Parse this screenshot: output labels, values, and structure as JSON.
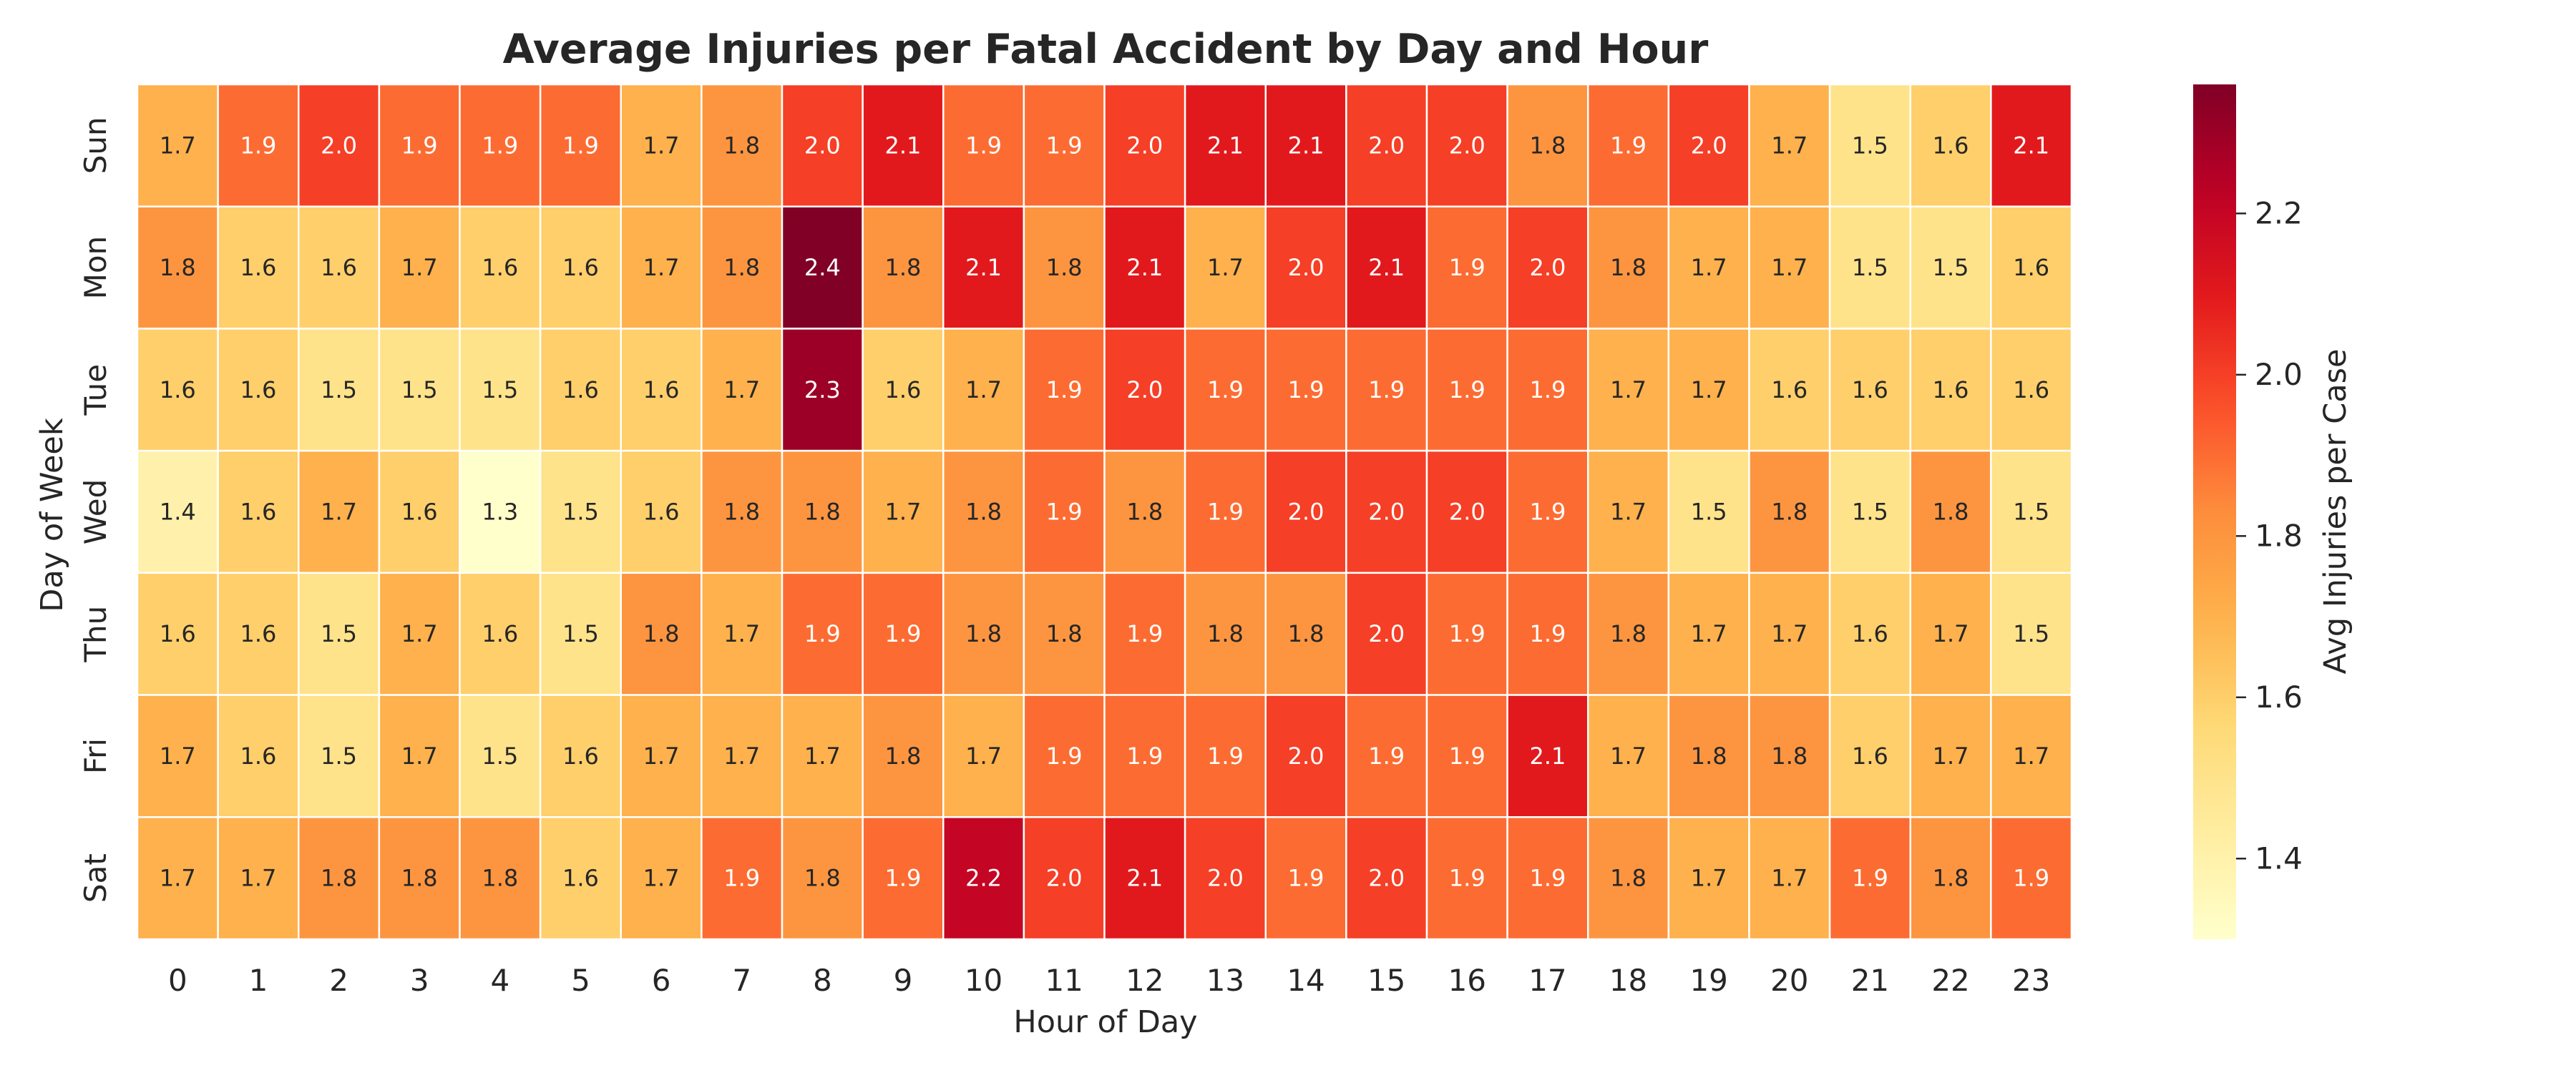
{
  "chart_data": {
    "type": "heatmap",
    "title": "Average Injuries per Fatal Accident by Day and Hour",
    "xlabel": "Hour of Day",
    "ylabel": "Day of Week",
    "x_categories": [
      "0",
      "1",
      "2",
      "3",
      "4",
      "5",
      "6",
      "7",
      "8",
      "9",
      "10",
      "11",
      "12",
      "13",
      "14",
      "15",
      "16",
      "17",
      "18",
      "19",
      "20",
      "21",
      "22",
      "23"
    ],
    "y_categories": [
      "Sun",
      "Mon",
      "Tue",
      "Wed",
      "Thu",
      "Fri",
      "Sat"
    ],
    "values": [
      [
        1.7,
        1.9,
        2.0,
        1.9,
        1.9,
        1.9,
        1.7,
        1.8,
        2.0,
        2.1,
        1.9,
        1.9,
        2.0,
        2.1,
        2.1,
        2.0,
        2.0,
        1.8,
        1.9,
        2.0,
        1.7,
        1.5,
        1.6,
        2.1
      ],
      [
        1.8,
        1.6,
        1.6,
        1.7,
        1.6,
        1.6,
        1.7,
        1.8,
        2.4,
        1.8,
        2.1,
        1.8,
        2.1,
        1.7,
        2.0,
        2.1,
        1.9,
        2.0,
        1.8,
        1.7,
        1.7,
        1.5,
        1.5,
        1.6
      ],
      [
        1.6,
        1.6,
        1.5,
        1.5,
        1.5,
        1.6,
        1.6,
        1.7,
        2.3,
        1.6,
        1.7,
        1.9,
        2.0,
        1.9,
        1.9,
        1.9,
        1.9,
        1.9,
        1.7,
        1.7,
        1.6,
        1.6,
        1.6,
        1.6
      ],
      [
        1.4,
        1.6,
        1.7,
        1.6,
        1.3,
        1.5,
        1.6,
        1.8,
        1.8,
        1.7,
        1.8,
        1.9,
        1.8,
        1.9,
        2.0,
        2.0,
        2.0,
        1.9,
        1.7,
        1.5,
        1.8,
        1.5,
        1.8,
        1.5
      ],
      [
        1.6,
        1.6,
        1.5,
        1.7,
        1.6,
        1.5,
        1.8,
        1.7,
        1.9,
        1.9,
        1.8,
        1.8,
        1.9,
        1.8,
        1.8,
        2.0,
        1.9,
        1.9,
        1.8,
        1.7,
        1.7,
        1.6,
        1.7,
        1.5
      ],
      [
        1.7,
        1.6,
        1.5,
        1.7,
        1.5,
        1.6,
        1.7,
        1.7,
        1.7,
        1.8,
        1.7,
        1.9,
        1.9,
        1.9,
        2.0,
        1.9,
        1.9,
        2.1,
        1.7,
        1.8,
        1.8,
        1.6,
        1.7,
        1.7
      ],
      [
        1.7,
        1.7,
        1.8,
        1.8,
        1.8,
        1.6,
        1.7,
        1.9,
        1.8,
        1.9,
        2.2,
        2.0,
        2.1,
        2.0,
        1.9,
        2.0,
        1.9,
        1.9,
        1.8,
        1.7,
        1.7,
        1.9,
        1.8,
        1.9
      ]
    ],
    "colormap": "YlOrRd",
    "value_range": [
      1.3,
      2.36
    ],
    "colorbar": {
      "label": "Avg Injuries per Case",
      "ticks": [
        1.4,
        1.6,
        1.8,
        2.0,
        2.2
      ],
      "tick_labels": [
        "1.4",
        "1.6",
        "1.8",
        "2.0",
        "2.2"
      ]
    },
    "grid": false,
    "cell_border_color": "#ffffff"
  }
}
